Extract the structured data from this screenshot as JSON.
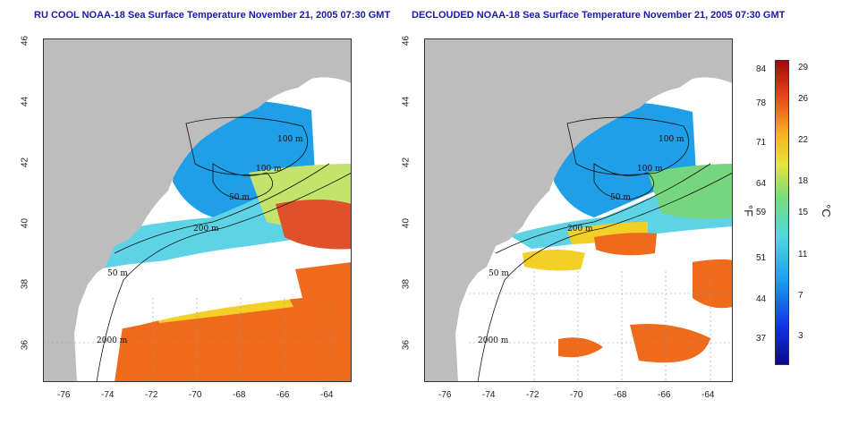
{
  "left_title": "RU COOL NOAA-18 Sea Surface Temperature November 21, 2005 07:30 GMT",
  "right_title": "DECLOUDED NOAA-18 Sea Surface Temperature November 21, 2005 07:30 GMT",
  "lon_ticks": [
    "-76",
    "-74",
    "-72",
    "-70",
    "-68",
    "-66",
    "-64"
  ],
  "lat_ticks": [
    "46",
    "44",
    "42",
    "40",
    "38",
    "36"
  ],
  "contour_labels": [
    "100 m",
    "100 m",
    "50 m",
    "200 m",
    "50 m",
    "2000 m"
  ],
  "colorbar": {
    "fahrenheit_ticks": [
      "84",
      "78",
      "71",
      "64",
      "59",
      "51",
      "44",
      "37"
    ],
    "celsius_ticks": [
      "29",
      "26",
      "22",
      "18",
      "15",
      "11",
      "7",
      "3"
    ],
    "fahrenheit_unit": "°F",
    "celsius_unit": "°C"
  },
  "colors": {
    "land": "#bdbdbd",
    "cloud": "#ffffff",
    "title": "#1a1aa8",
    "cold": "#1f9fe8",
    "cool": "#5fd3e6",
    "mild": "#76d67f",
    "warm": "#f2d028",
    "hot": "#f06a1c"
  }
}
